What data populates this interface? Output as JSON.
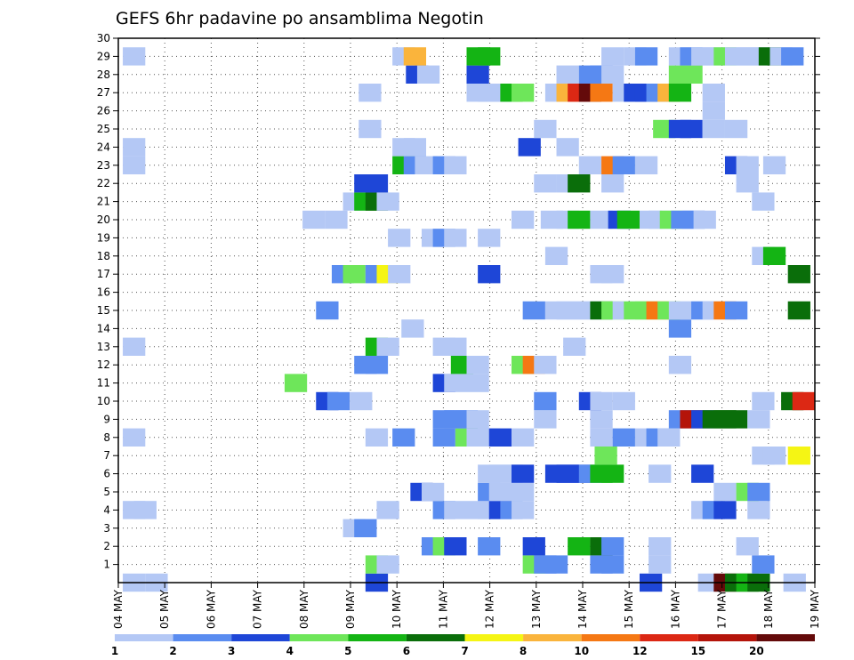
{
  "chart_data": {
    "type": "heatmap",
    "title": "GEFS 6hr padavine po ansamblima Negotin",
    "y_ticks": [
      "1",
      "2",
      "3",
      "4",
      "5",
      "6",
      "7",
      "8",
      "9",
      "10",
      "11",
      "12",
      "13",
      "14",
      "15",
      "16",
      "17",
      "18",
      "19",
      "20",
      "21",
      "22",
      "23",
      "24",
      "25",
      "26",
      "27",
      "28",
      "29",
      "30"
    ],
    "ylim": [
      0,
      30
    ],
    "x_ticks": [
      "04 MAY",
      "05 MAY",
      "06 MAY",
      "07 MAY",
      "08 MAY",
      "09 MAY",
      "10 MAY",
      "11 MAY",
      "12 MAY",
      "13 MAY",
      "14 MAY",
      "15 MAY",
      "16 MAY",
      "17 MAY",
      "18 MAY",
      "19 MAY"
    ],
    "grid": true,
    "colorbar": {
      "labels": [
        "1",
        "2",
        "3",
        "4",
        "5",
        "6",
        "7",
        "8",
        "10",
        "12",
        "15",
        "20"
      ],
      "colors": [
        "#b4c8f5",
        "#5a8cf0",
        "#1e46d7",
        "#6ee65a",
        "#14b414",
        "#0a6e0a",
        "#f5f514",
        "#fab43c",
        "#f57814",
        "#dc2814",
        "#b4140a",
        "#640a0a"
      ]
    },
    "cells": [
      [
        0.2,
        0,
        1
      ],
      [
        1.2,
        0,
        1
      ],
      [
        11,
        0,
        3
      ],
      [
        23.2,
        0,
        3
      ],
      [
        25.8,
        0,
        1
      ],
      [
        26.5,
        0,
        12
      ],
      [
        27,
        0,
        6
      ],
      [
        27.5,
        0,
        5
      ],
      [
        28,
        0,
        6
      ],
      [
        29.6,
        0,
        1
      ],
      [
        11,
        1,
        4
      ],
      [
        11.5,
        1,
        1
      ],
      [
        18,
        1,
        4
      ],
      [
        18.5,
        1,
        2
      ],
      [
        19,
        1,
        2
      ],
      [
        21,
        1,
        2
      ],
      [
        21.5,
        1,
        2
      ],
      [
        23.6,
        1,
        1
      ],
      [
        28.2,
        1,
        2
      ],
      [
        13.5,
        2,
        2
      ],
      [
        14,
        2,
        4
      ],
      [
        14.5,
        2,
        3
      ],
      [
        16,
        2,
        2
      ],
      [
        18,
        2,
        3
      ],
      [
        20,
        2,
        5
      ],
      [
        21,
        2,
        6
      ],
      [
        21.5,
        2,
        2
      ],
      [
        23.6,
        2,
        1
      ],
      [
        27.5,
        2,
        1
      ],
      [
        10,
        3,
        1
      ],
      [
        10.5,
        3,
        2
      ],
      [
        0.2,
        4,
        1
      ],
      [
        0.7,
        4,
        1
      ],
      [
        11.5,
        4,
        1
      ],
      [
        14,
        4,
        2
      ],
      [
        14.5,
        4,
        1
      ],
      [
        15.5,
        4,
        1
      ],
      [
        16,
        4,
        1
      ],
      [
        16.5,
        4,
        3
      ],
      [
        17,
        4,
        2
      ],
      [
        17.5,
        4,
        1
      ],
      [
        25.5,
        4,
        1
      ],
      [
        26,
        4,
        2
      ],
      [
        26.5,
        4,
        3
      ],
      [
        28,
        4,
        1
      ],
      [
        13,
        5,
        3
      ],
      [
        13.5,
        5,
        1
      ],
      [
        16,
        5,
        2
      ],
      [
        16.5,
        5,
        1
      ],
      [
        17.5,
        5,
        1
      ],
      [
        26.5,
        5,
        1
      ],
      [
        27.5,
        5,
        4
      ],
      [
        28,
        5,
        2
      ],
      [
        16,
        6,
        1
      ],
      [
        16.5,
        6,
        1
      ],
      [
        17,
        6,
        1
      ],
      [
        17.5,
        6,
        3
      ],
      [
        19,
        6,
        3
      ],
      [
        19.5,
        6,
        3
      ],
      [
        20,
        6,
        3
      ],
      [
        20.5,
        6,
        2
      ],
      [
        21,
        6,
        5
      ],
      [
        21.5,
        6,
        5
      ],
      [
        23.6,
        6,
        1
      ],
      [
        25.5,
        6,
        3
      ],
      [
        21.2,
        7,
        4
      ],
      [
        28.2,
        7,
        1
      ],
      [
        28.7,
        7,
        1
      ],
      [
        29.8,
        7,
        7
      ],
      [
        0.2,
        8,
        1
      ],
      [
        11,
        8,
        1
      ],
      [
        12.2,
        8,
        2
      ],
      [
        14,
        8,
        2
      ],
      [
        15,
        8,
        4
      ],
      [
        15.5,
        8,
        1
      ],
      [
        16,
        8,
        1
      ],
      [
        16.5,
        8,
        3
      ],
      [
        17.5,
        8,
        1
      ],
      [
        21,
        8,
        1
      ],
      [
        22,
        8,
        2
      ],
      [
        23,
        8,
        1
      ],
      [
        23.5,
        8,
        2
      ],
      [
        24,
        8,
        1
      ],
      [
        14,
        9,
        2
      ],
      [
        14.5,
        9,
        2
      ],
      [
        15,
        9,
        2
      ],
      [
        15.5,
        9,
        1
      ],
      [
        18.5,
        9,
        1
      ],
      [
        21,
        9,
        1
      ],
      [
        24.5,
        9,
        2
      ],
      [
        25,
        9,
        11
      ],
      [
        25.5,
        9,
        3
      ],
      [
        26,
        9,
        6
      ],
      [
        26.5,
        9,
        6
      ],
      [
        27,
        9,
        6
      ],
      [
        28,
        9,
        1
      ],
      [
        8.8,
        10,
        3
      ],
      [
        9.3,
        10,
        2
      ],
      [
        10.3,
        10,
        1
      ],
      [
        18.5,
        10,
        2
      ],
      [
        20.5,
        10,
        3
      ],
      [
        21,
        10,
        1
      ],
      [
        22,
        10,
        1
      ],
      [
        28.2,
        10,
        1
      ],
      [
        29.5,
        10,
        6
      ],
      [
        30,
        10,
        10
      ],
      [
        7.4,
        11,
        4
      ],
      [
        14,
        11,
        3
      ],
      [
        14.5,
        11,
        1
      ],
      [
        15.5,
        11,
        1
      ],
      [
        10.5,
        12,
        2
      ],
      [
        11,
        12,
        2
      ],
      [
        14.8,
        12,
        5
      ],
      [
        15.5,
        12,
        1
      ],
      [
        17.5,
        12,
        4
      ],
      [
        18,
        12,
        9
      ],
      [
        18.5,
        12,
        1
      ],
      [
        24.5,
        12,
        1
      ],
      [
        0.2,
        13,
        1
      ],
      [
        11,
        13,
        5
      ],
      [
        11.5,
        13,
        1
      ],
      [
        14,
        13,
        1
      ],
      [
        14.5,
        13,
        1
      ],
      [
        19.8,
        13,
        1
      ],
      [
        12.6,
        14,
        1
      ],
      [
        24.5,
        14,
        2
      ],
      [
        8.8,
        15,
        2
      ],
      [
        18,
        15,
        2
      ],
      [
        19,
        15,
        1
      ],
      [
        19.5,
        15,
        1
      ],
      [
        20,
        15,
        1
      ],
      [
        20.5,
        15,
        1
      ],
      [
        21,
        15,
        6
      ],
      [
        21.5,
        15,
        4
      ],
      [
        22,
        15,
        1
      ],
      [
        22.5,
        15,
        4
      ],
      [
        23,
        15,
        4
      ],
      [
        23.5,
        15,
        9
      ],
      [
        24,
        15,
        4
      ],
      [
        24.5,
        15,
        1
      ],
      [
        25,
        15,
        1
      ],
      [
        25.5,
        15,
        2
      ],
      [
        26,
        15,
        1
      ],
      [
        26.5,
        15,
        9
      ],
      [
        27,
        15,
        2
      ],
      [
        29.8,
        15,
        6
      ],
      [
        9.5,
        17,
        2
      ],
      [
        10,
        17,
        4
      ],
      [
        11,
        17,
        2
      ],
      [
        11.5,
        17,
        7
      ],
      [
        12,
        17,
        1
      ],
      [
        16,
        17,
        3
      ],
      [
        21,
        17,
        1
      ],
      [
        21.5,
        17,
        1
      ],
      [
        29.8,
        17,
        6
      ],
      [
        19,
        18,
        1
      ],
      [
        28.2,
        18,
        1
      ],
      [
        28.7,
        18,
        5
      ],
      [
        12,
        19,
        1
      ],
      [
        13.5,
        19,
        1
      ],
      [
        14,
        19,
        2
      ],
      [
        14.5,
        19,
        1
      ],
      [
        16,
        19,
        1
      ],
      [
        8.2,
        20,
        1
      ],
      [
        9.2,
        20,
        1
      ],
      [
        17.5,
        20,
        1
      ],
      [
        18.8,
        20,
        1
      ],
      [
        19.5,
        20,
        1
      ],
      [
        20,
        20,
        5
      ],
      [
        21,
        20,
        1
      ],
      [
        21.8,
        20,
        3
      ],
      [
        22.2,
        20,
        5
      ],
      [
        23.2,
        20,
        1
      ],
      [
        23.6,
        20,
        1
      ],
      [
        24.1,
        20,
        4
      ],
      [
        24.6,
        20,
        2
      ],
      [
        25.1,
        20,
        2
      ],
      [
        25.6,
        20,
        1
      ],
      [
        10,
        21,
        1
      ],
      [
        10.5,
        21,
        5
      ],
      [
        11,
        21,
        6
      ],
      [
        11.5,
        21,
        1
      ],
      [
        28.2,
        21,
        1
      ],
      [
        10.5,
        22,
        3
      ],
      [
        11,
        22,
        3
      ],
      [
        18.5,
        22,
        1
      ],
      [
        19.5,
        22,
        1
      ],
      [
        20,
        22,
        6
      ],
      [
        21.5,
        22,
        1
      ],
      [
        27.5,
        22,
        1
      ],
      [
        0.2,
        23,
        1
      ],
      [
        12.2,
        23,
        5
      ],
      [
        12.7,
        23,
        2
      ],
      [
        13.2,
        23,
        1
      ],
      [
        14,
        23,
        2
      ],
      [
        14.5,
        23,
        1
      ],
      [
        20.5,
        23,
        1
      ],
      [
        21.5,
        23,
        9
      ],
      [
        22,
        23,
        2
      ],
      [
        23,
        23,
        1
      ],
      [
        27,
        23,
        3
      ],
      [
        27.5,
        23,
        1
      ],
      [
        28.7,
        23,
        1
      ],
      [
        0.2,
        24,
        1
      ],
      [
        12.2,
        24,
        1
      ],
      [
        12.7,
        24,
        1
      ],
      [
        17.8,
        24,
        3
      ],
      [
        19.5,
        24,
        1
      ],
      [
        10.7,
        25,
        1
      ],
      [
        18.5,
        25,
        1
      ],
      [
        23.8,
        25,
        4
      ],
      [
        24.5,
        25,
        3
      ],
      [
        25,
        25,
        3
      ],
      [
        26,
        25,
        1
      ],
      [
        27,
        25,
        1
      ],
      [
        26,
        26,
        1
      ],
      [
        10.7,
        27,
        1
      ],
      [
        15.5,
        27,
        1
      ],
      [
        16,
        27,
        1
      ],
      [
        16.5,
        27,
        1
      ],
      [
        17,
        27,
        5
      ],
      [
        17.5,
        27,
        4
      ],
      [
        19,
        27,
        1
      ],
      [
        19.5,
        27,
        8
      ],
      [
        20,
        27,
        10
      ],
      [
        20.5,
        27,
        12
      ],
      [
        21,
        27,
        9
      ],
      [
        22,
        27,
        1
      ],
      [
        22.5,
        27,
        3
      ],
      [
        23,
        27,
        3
      ],
      [
        23.5,
        27,
        2
      ],
      [
        24,
        27,
        8
      ],
      [
        24.5,
        27,
        5
      ],
      [
        26,
        27,
        1
      ],
      [
        12.8,
        28,
        3
      ],
      [
        13.3,
        28,
        1
      ],
      [
        15.5,
        28,
        3
      ],
      [
        19.5,
        28,
        1
      ],
      [
        20.5,
        28,
        2
      ],
      [
        21,
        28,
        2
      ],
      [
        21.5,
        28,
        1
      ],
      [
        24.5,
        28,
        4
      ],
      [
        25,
        28,
        4
      ],
      [
        0.2,
        29,
        1
      ],
      [
        12.2,
        29,
        1
      ],
      [
        12.7,
        29,
        8
      ],
      [
        15.5,
        29,
        5
      ],
      [
        16,
        29,
        5
      ],
      [
        21.5,
        29,
        1
      ],
      [
        22.5,
        29,
        1
      ],
      [
        23,
        29,
        2
      ],
      [
        24.5,
        29,
        1
      ],
      [
        25,
        29,
        2
      ],
      [
        25.5,
        29,
        1
      ],
      [
        26,
        29,
        1
      ],
      [
        26.5,
        29,
        4
      ],
      [
        27,
        29,
        1
      ],
      [
        27.5,
        29,
        1
      ],
      [
        28,
        29,
        1
      ],
      [
        28.5,
        29,
        6
      ],
      [
        29,
        29,
        1
      ],
      [
        29.5,
        29,
        2
      ]
    ]
  }
}
